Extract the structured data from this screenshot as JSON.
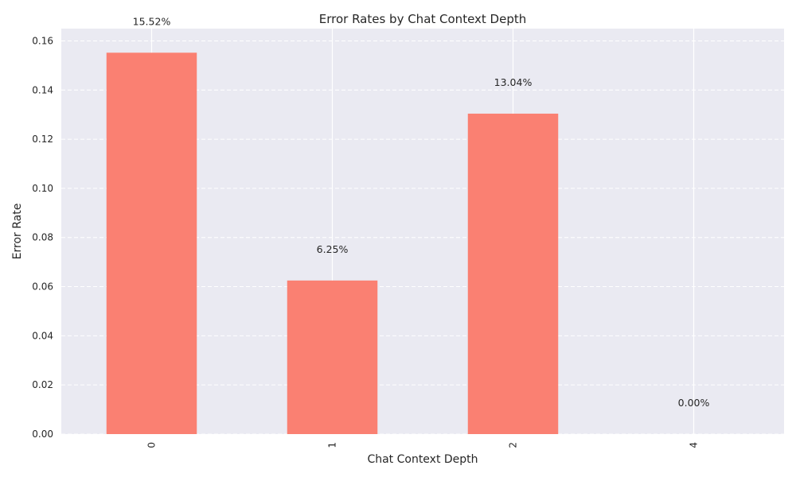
{
  "chart_data": {
    "type": "bar",
    "title": "Error Rates by Chat Context Depth",
    "xlabel": "Chat Context Depth",
    "ylabel": "Error Rate",
    "categories": [
      "0",
      "1",
      "2",
      "4"
    ],
    "values": [
      0.1552,
      0.0625,
      0.1304,
      0.0
    ],
    "data_labels": [
      "15.52%",
      "6.25%",
      "13.04%",
      "0.00%"
    ],
    "ylim": [
      0,
      0.165
    ],
    "yticks": [
      "0.00",
      "0.02",
      "0.04",
      "0.06",
      "0.08",
      "0.10",
      "0.12",
      "0.14",
      "0.16"
    ],
    "grid": true,
    "x_tick_rotation": "vertical",
    "bar_color": "#fa8072",
    "background_color": "#eaeaf2"
  }
}
